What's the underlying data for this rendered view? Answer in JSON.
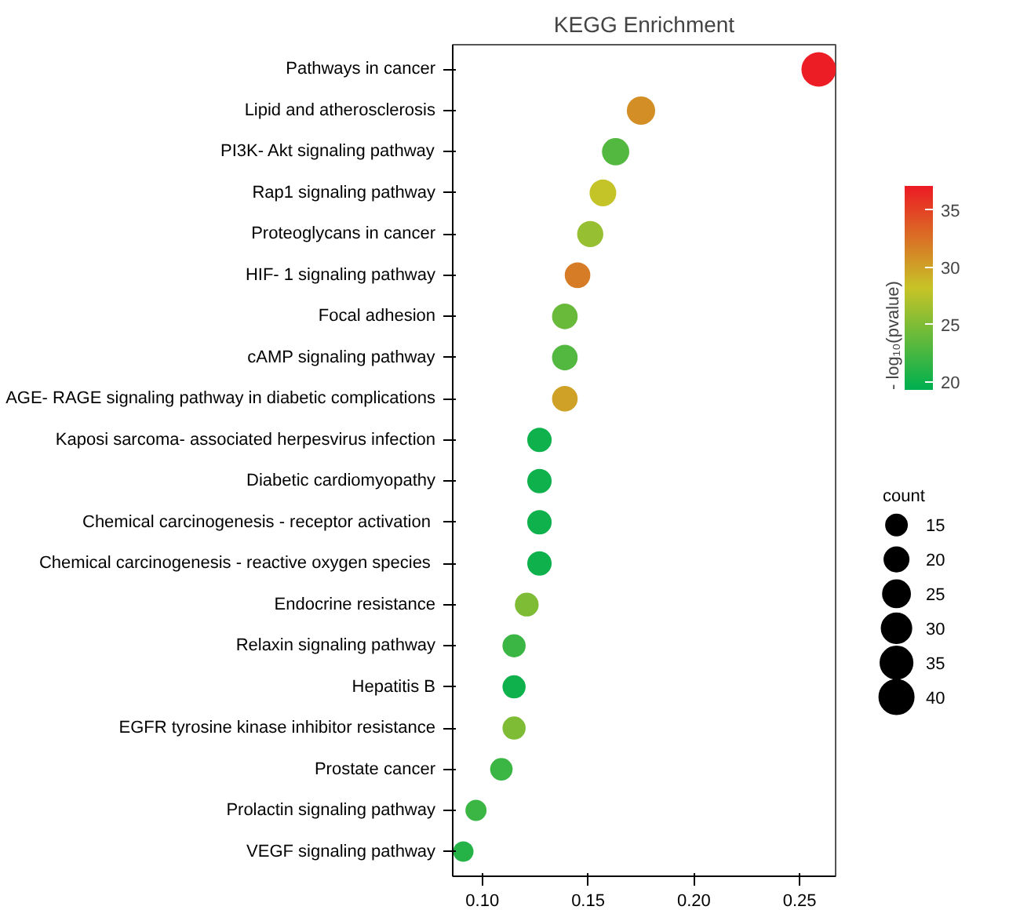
{
  "chart_data": {
    "type": "bubble",
    "orientation": "horizontal",
    "title": "KEGG Enrichment",
    "categories": [
      "Pathways in cancer",
      "Lipid and atherosclerosis",
      "PI3K- Akt signaling pathway",
      "Rap1 signaling pathway",
      "Proteoglycans in cancer",
      "HIF- 1 signaling pathway",
      "Focal adhesion",
      "cAMP signaling pathway",
      "AGE- RAGE signaling pathway in diabetic complications",
      "Kaposi sarcoma- associated herpesvirus infection",
      "Diabetic cardiomyopathy",
      "Chemical carcinogenesis -  receptor activation",
      "Chemical carcinogenesis -  reactive oxygen species",
      "Endocrine resistance",
      "Relaxin signaling pathway",
      "Hepatitis B",
      "EGFR tyrosine kinase inhibitor resistance",
      "Prostate cancer",
      "Prolactin signaling pathway",
      "VEGF signaling pathway"
    ],
    "values": [
      0.259,
      0.175,
      0.163,
      0.157,
      0.151,
      0.145,
      0.139,
      0.139,
      0.139,
      0.127,
      0.127,
      0.127,
      0.127,
      0.121,
      0.115,
      0.115,
      0.115,
      0.109,
      0.097,
      0.091
    ],
    "sizes": [
      40,
      27,
      25,
      24,
      23,
      22,
      22,
      22,
      22,
      20,
      20,
      20,
      20,
      19,
      18,
      18,
      18,
      17,
      15,
      14
    ],
    "cvalues": [
      37,
      31,
      23,
      28,
      26,
      32,
      24,
      23,
      30,
      20,
      20,
      20,
      20,
      25,
      22,
      20,
      25,
      22,
      22,
      21
    ],
    "clabel": "- log₁₀(pvalue)",
    "clim": [
      19.3,
      37.1
    ],
    "cticks": [
      20,
      25,
      30,
      35
    ],
    "legend_title": "count",
    "size_legend": [
      15,
      20,
      25,
      30,
      35,
      40
    ],
    "xlim": [
      0.086,
      0.267
    ],
    "xticks": [
      {
        "value": 0.1,
        "label": "0.10"
      },
      {
        "value": 0.15,
        "label": "0.15"
      },
      {
        "value": 0.2,
        "label": "0.20"
      },
      {
        "value": 0.25,
        "label": "0.25"
      }
    ]
  }
}
